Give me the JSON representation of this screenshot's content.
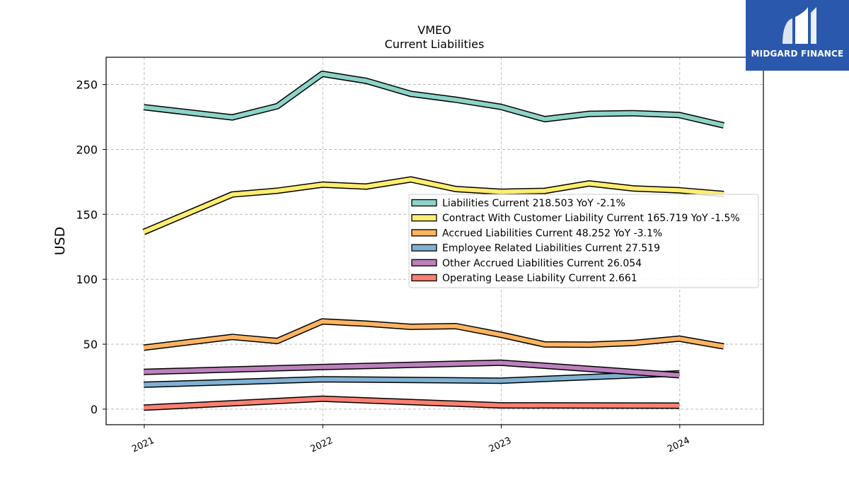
{
  "brand": {
    "name": "MIDGARD FINANCE",
    "color": "#2a58ad"
  },
  "chart_data": {
    "type": "line",
    "title": "VMEO",
    "subtitle": "Current  Liabilities",
    "ylabel": "USD",
    "xlabel": "",
    "x_ticks": [
      "2021",
      "2022",
      "2023",
      "2024"
    ],
    "y_ticks": [
      0,
      50,
      100,
      150,
      200,
      250
    ],
    "ylim": [
      -12,
      271
    ],
    "xlim": [
      "2020-10-15",
      "2024-06-20"
    ],
    "grid": true,
    "legend_position": "center-right",
    "series": [
      {
        "name": "Liabilities Current  218.503 YoY -2.1%",
        "color": "#8dd3c7",
        "x": [
          "2020-12-31",
          "2021-06-30",
          "2021-09-30",
          "2021-12-31",
          "2022-03-31",
          "2022-06-30",
          "2022-09-30",
          "2022-12-31",
          "2023-03-31",
          "2023-06-30",
          "2023-09-30",
          "2023-12-31",
          "2024-03-31"
        ],
        "values": [
          232.5,
          224.7,
          233.3,
          258.2,
          252.8,
          242.8,
          238.3,
          232.8,
          223.3,
          227.4,
          227.9,
          226.5,
          218.5
        ]
      },
      {
        "name": "Contract With Customer Liability Current  165.719 YoY -1.5%",
        "color": "#ffed6f",
        "x": [
          "2020-12-31",
          "2021-06-30",
          "2021-09-30",
          "2021-12-31",
          "2022-03-31",
          "2022-06-30",
          "2022-09-30",
          "2022-12-31",
          "2023-03-31",
          "2023-06-30",
          "2023-09-30",
          "2023-12-31",
          "2024-03-31"
        ],
        "values": [
          136.4,
          165.3,
          168.2,
          172.9,
          171.4,
          176.9,
          169.5,
          167.4,
          168.1,
          173.8,
          169.9,
          168.5,
          165.7
        ]
      },
      {
        "name": "Accrued Liabilities Current  48.252 YoY -3.1%",
        "color": "#fdb462",
        "x": [
          "2020-12-31",
          "2021-06-30",
          "2021-09-30",
          "2021-12-31",
          "2022-03-31",
          "2022-06-30",
          "2022-09-30",
          "2022-12-31",
          "2023-03-31",
          "2023-06-30",
          "2023-09-30",
          "2023-12-31",
          "2024-03-31"
        ],
        "values": [
          47.3,
          55.6,
          52.5,
          67.5,
          65.8,
          63.4,
          63.9,
          57.3,
          49.8,
          49.6,
          51.0,
          54.3,
          48.3
        ]
      },
      {
        "name": "Employee Related Liabilities Current  27.519",
        "color": "#80b1d3",
        "x": [
          "2020-12-31",
          "2021-12-31",
          "2022-12-31",
          "2023-12-31"
        ],
        "values": [
          18.8,
          23.0,
          21.9,
          27.5
        ]
      },
      {
        "name": "Other Accrued Liabilities Current  26.054",
        "color": "#bc80bd",
        "x": [
          "2020-12-31",
          "2021-12-31",
          "2022-12-31",
          "2023-12-31"
        ],
        "values": [
          28.7,
          32.4,
          35.8,
          26.1
        ]
      },
      {
        "name": "Operating Lease Liability Current  2.661",
        "color": "#fb8072",
        "x": [
          "2020-12-31",
          "2021-12-31",
          "2022-12-31",
          "2023-12-31"
        ],
        "values": [
          1.1,
          8.0,
          2.9,
          2.7
        ]
      }
    ]
  }
}
